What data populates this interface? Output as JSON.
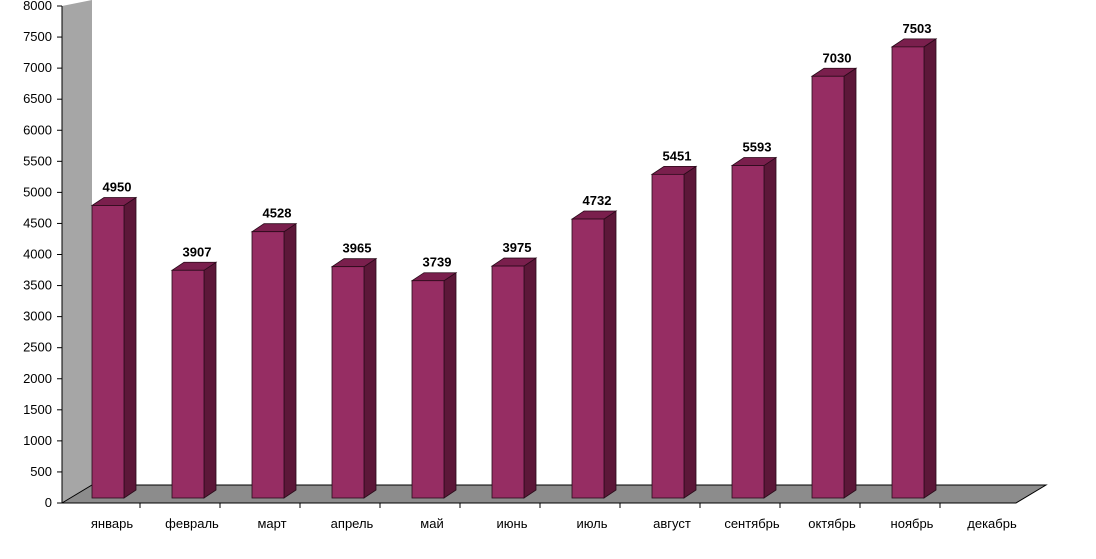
{
  "chart_data": {
    "type": "bar",
    "categories": [
      "январь",
      "февраль",
      "март",
      "апрель",
      "май",
      "июнь",
      "июль",
      "август",
      "сентябрь",
      "октябрь",
      "ноябрь",
      "декабрь"
    ],
    "values": [
      4950,
      3907,
      4528,
      3965,
      3739,
      3975,
      4732,
      5451,
      5593,
      7030,
      7503,
      null
    ],
    "data_labels": [
      "4950",
      "3907",
      "4528",
      "3965",
      "3739",
      "3975",
      "4732",
      "5451",
      "5593",
      "7030",
      "7503",
      ""
    ],
    "yticks": [
      "0",
      "500",
      "1000",
      "1500",
      "2000",
      "2500",
      "3000",
      "3500",
      "4000",
      "4500",
      "5000",
      "5500",
      "6000",
      "6500",
      "7000",
      "7500",
      "8000"
    ],
    "ylim": [
      0,
      8000
    ],
    "title": "",
    "xlabel": "",
    "ylabel": "",
    "grid": false,
    "legend": "none",
    "style": "3d-column",
    "colors": {
      "bar_front": "#962D63",
      "bar_top": "#7A1F4D",
      "bar_side": "#5C1738",
      "wall": "#A6A6A6",
      "floor": "#8C8C8C",
      "axis": "#000000"
    }
  }
}
